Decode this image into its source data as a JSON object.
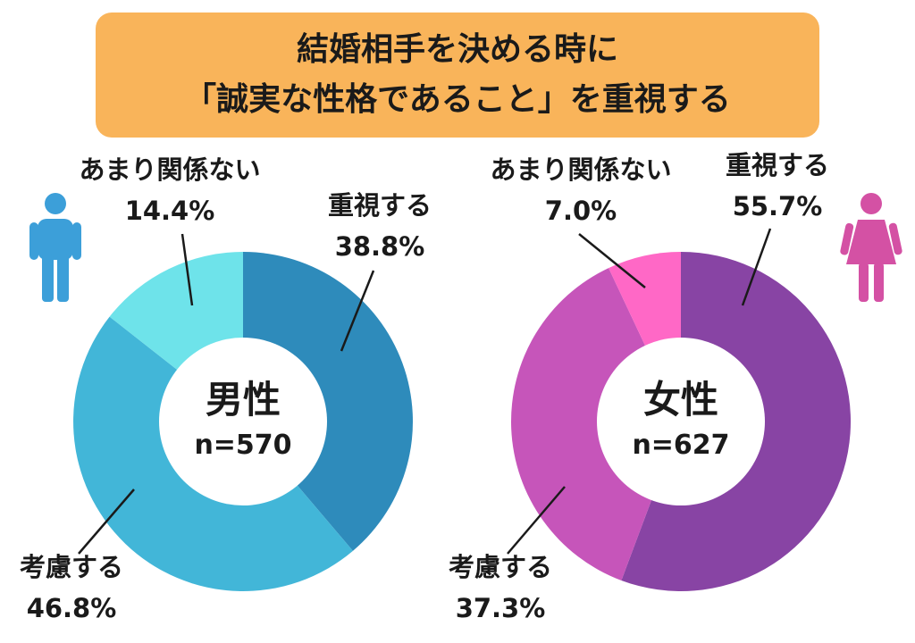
{
  "title": {
    "line1": "結婚相手を決める時に",
    "line2": "「誠実な性格であること」を重視する"
  },
  "colors": {
    "title_bg": "#f9b45a",
    "male_icon": "#3c9fd9",
    "female_icon": "#d451a4"
  },
  "icons": {
    "male": "man-icon",
    "female": "woman-icon"
  },
  "chart_data": [
    {
      "type": "pie",
      "title": "男性",
      "subtitle": "n=570",
      "series": [
        {
          "label": "重視する",
          "value": 38.8,
          "display": "38.8%",
          "color": "#2e8bbb"
        },
        {
          "label": "考慮する",
          "value": 46.8,
          "display": "46.8%",
          "color": "#42b6d8"
        },
        {
          "label": "あまり関係ない",
          "value": 14.4,
          "display": "14.4%",
          "color": "#6ee3ea"
        }
      ]
    },
    {
      "type": "pie",
      "title": "女性",
      "subtitle": "n=627",
      "series": [
        {
          "label": "重視する",
          "value": 55.7,
          "display": "55.7%",
          "color": "#8844a4"
        },
        {
          "label": "考慮する",
          "value": 37.3,
          "display": "37.3%",
          "color": "#c655ba"
        },
        {
          "label": "あまり関係ない",
          "value": 7.0,
          "display": "7.0%",
          "color": "#ff68c6"
        }
      ]
    }
  ]
}
